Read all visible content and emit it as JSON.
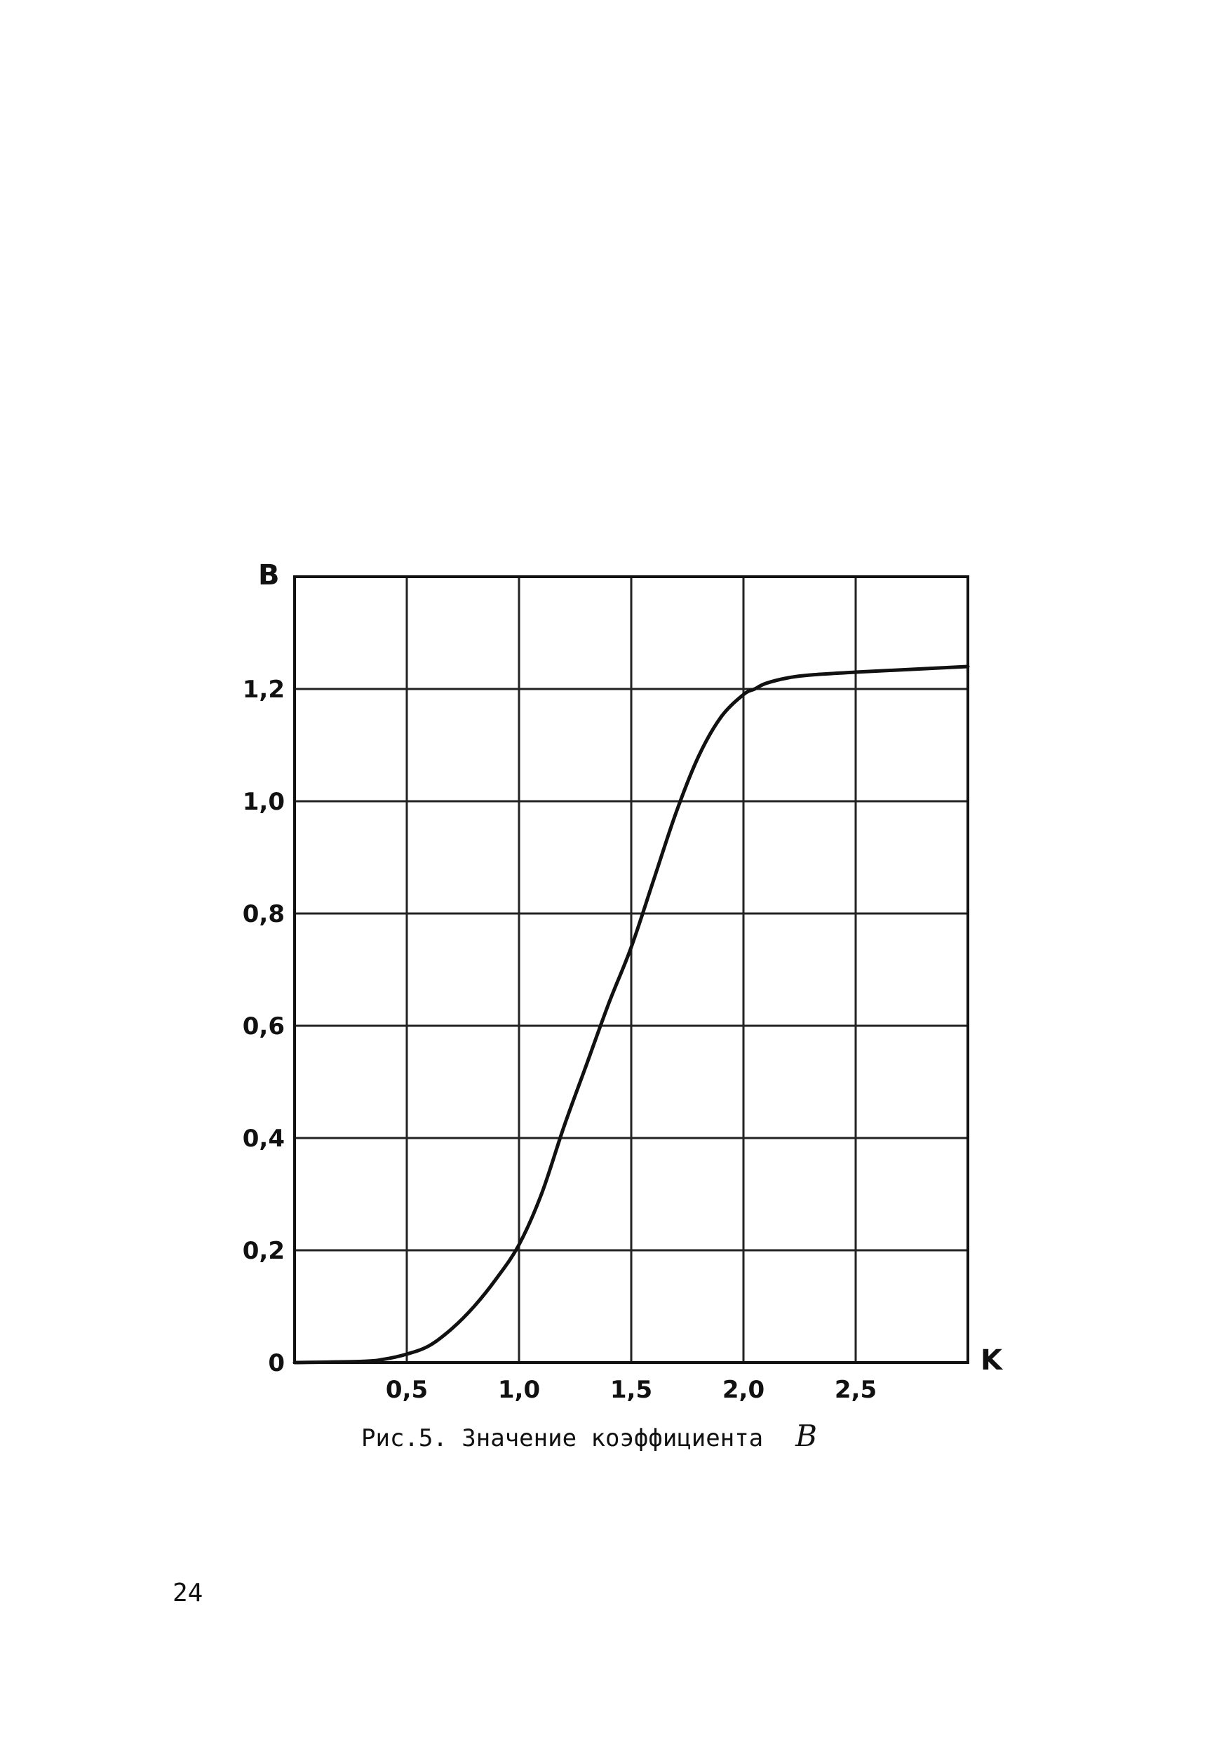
{
  "chart_data": {
    "type": "line",
    "title": "",
    "xlabel": "K",
    "ylabel": "B",
    "xlim": [
      0,
      3.0
    ],
    "ylim": [
      0,
      1.4
    ],
    "grid": true,
    "x_ticks": [
      0.5,
      1.0,
      1.5,
      2.0,
      2.5
    ],
    "x_tick_labels": [
      "0,5",
      "1,0",
      "1,5",
      "2,0",
      "2,5"
    ],
    "y_ticks": [
      0,
      0.2,
      0.4,
      0.6,
      0.8,
      1.0,
      1.2
    ],
    "y_tick_labels": [
      "0",
      "0,2",
      "0,4",
      "0,6",
      "0,8",
      "1,0",
      "1,2"
    ],
    "series": [
      {
        "x": [
          0,
          0.3,
          0.4,
          0.5,
          0.6,
          0.7,
          0.8,
          0.9,
          1.0,
          1.1,
          1.2,
          1.3,
          1.4,
          1.5,
          1.6,
          1.7,
          1.8,
          1.9,
          2.0,
          2.05,
          2.1,
          2.2,
          2.3,
          2.5,
          2.75,
          3.0
        ],
        "values": [
          0,
          0.002,
          0.006,
          0.015,
          0.03,
          0.06,
          0.1,
          0.15,
          0.21,
          0.3,
          0.42,
          0.53,
          0.64,
          0.74,
          0.86,
          0.98,
          1.08,
          1.15,
          1.19,
          1.2,
          1.21,
          1.22,
          1.225,
          1.23,
          1.235,
          1.24
        ],
        "color": "#111111"
      }
    ]
  },
  "caption": {
    "text": "Рис.5. Значение коэффициента",
    "symbol": "B"
  },
  "page": {
    "number": "24"
  }
}
